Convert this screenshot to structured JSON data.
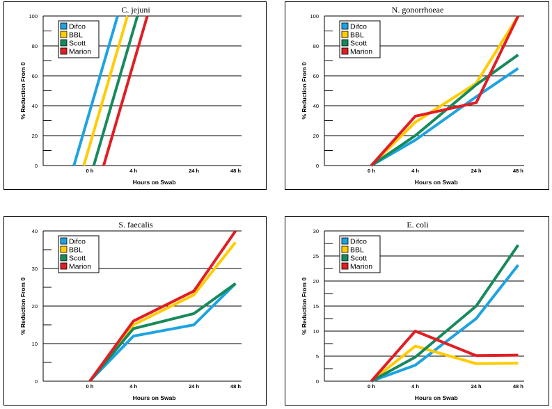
{
  "chart_data": [
    {
      "type": "line",
      "title": "C. jejuni",
      "xlabel": "Hours on Swab",
      "ylabel": "% Reduction From 0",
      "categories": [
        "0 h",
        "4 h",
        "24 h",
        "48 h"
      ],
      "ylim": [
        0,
        100
      ],
      "yticks": [
        0,
        20,
        40,
        60,
        80,
        100
      ],
      "grid": true,
      "legend": "top-left",
      "series": [
        {
          "name": "Difco",
          "color": "#1ea3e0",
          "values": [
            0,
            100,
            null,
            null
          ],
          "xoffset": -0.08
        },
        {
          "name": "BBL",
          "color": "#ffcc00",
          "values": [
            0,
            100,
            null,
            null
          ],
          "xoffset": -0.03
        },
        {
          "name": "Scott",
          "color": "#178a5c",
          "values": [
            0,
            100,
            null,
            null
          ],
          "xoffset": 0.02
        },
        {
          "name": "Marion",
          "color": "#e01e24",
          "values": [
            0,
            100,
            null,
            null
          ],
          "xoffset": 0.07
        }
      ]
    },
    {
      "type": "line",
      "title": "N. gonorrhoeae",
      "xlabel": "Hours on Swab",
      "ylabel": "% Reduction From 0",
      "categories": [
        "0 h",
        "4 h",
        "24 h",
        "48 h"
      ],
      "ylim": [
        0,
        100
      ],
      "yticks": [
        0,
        20,
        40,
        60,
        80,
        100
      ],
      "grid": true,
      "legend": "top-left",
      "series": [
        {
          "name": "Difco",
          "color": "#1ea3e0",
          "values": [
            0,
            17,
            46,
            65
          ]
        },
        {
          "name": "BBL",
          "color": "#ffcc00",
          "values": [
            0,
            29,
            55,
            100
          ]
        },
        {
          "name": "Scott",
          "color": "#178a5c",
          "values": [
            0,
            20,
            54,
            74
          ]
        },
        {
          "name": "Marion",
          "color": "#e01e24",
          "values": [
            0,
            33,
            42,
            100
          ]
        }
      ]
    },
    {
      "type": "line",
      "title": "S. faecalis",
      "xlabel": "Hours on Swab",
      "ylabel": "% Reduction From 0",
      "categories": [
        "0 h",
        "4 h",
        "24 h",
        "48 h"
      ],
      "ylim": [
        0,
        40
      ],
      "yticks": [
        0,
        10,
        20,
        30,
        40
      ],
      "grid": true,
      "legend": "top-left",
      "series": [
        {
          "name": "Difco",
          "color": "#1ea3e0",
          "values": [
            0,
            12,
            15,
            26
          ]
        },
        {
          "name": "BBL",
          "color": "#ffcc00",
          "values": [
            0,
            15,
            23,
            37
          ]
        },
        {
          "name": "Scott",
          "color": "#178a5c",
          "values": [
            0,
            14,
            18,
            26
          ]
        },
        {
          "name": "Marion",
          "color": "#e01e24",
          "values": [
            0,
            16,
            24,
            40
          ]
        }
      ]
    },
    {
      "type": "line",
      "title": "E. coli",
      "xlabel": "Hours on Swab",
      "ylabel": "% Reduction From 0",
      "categories": [
        "0 h",
        "4 h",
        "24 h",
        "48 h"
      ],
      "ylim": [
        0,
        30
      ],
      "yticks": [
        0,
        5,
        10,
        15,
        20,
        25,
        30
      ],
      "grid": true,
      "legend": "top-left",
      "series": [
        {
          "name": "Difco",
          "color": "#1ea3e0",
          "values": [
            0,
            3.2,
            12.5,
            23.2
          ]
        },
        {
          "name": "BBL",
          "color": "#ffcc00",
          "values": [
            0,
            7,
            3.5,
            3.6
          ]
        },
        {
          "name": "Scott",
          "color": "#178a5c",
          "values": [
            0,
            4.8,
            15,
            27.2
          ]
        },
        {
          "name": "Marion",
          "color": "#e01e24",
          "values": [
            0,
            10,
            5.1,
            5.2
          ]
        }
      ]
    }
  ]
}
